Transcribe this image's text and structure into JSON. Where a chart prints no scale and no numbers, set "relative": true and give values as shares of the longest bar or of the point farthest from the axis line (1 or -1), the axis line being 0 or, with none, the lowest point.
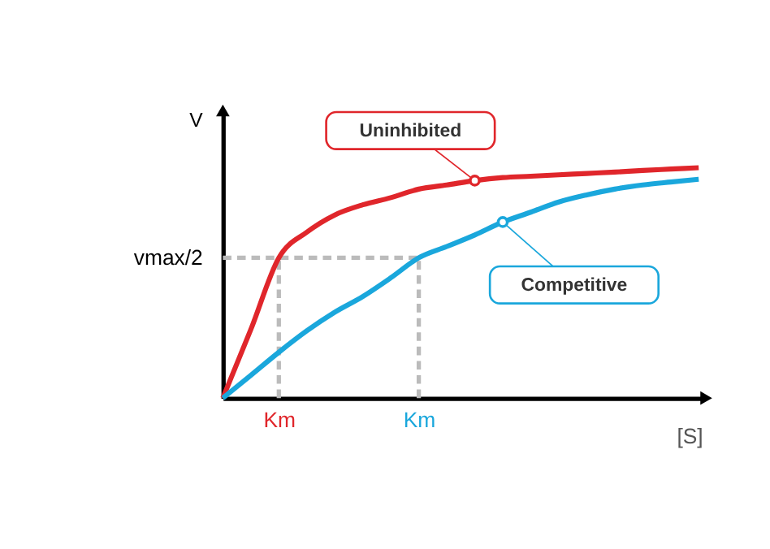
{
  "chart_data": {
    "type": "line",
    "relative": true,
    "xlabel": "[S]",
    "ylabel": "V",
    "categories": [
      null,
      null,
      "Km",
      null,
      null,
      null,
      null,
      "Km",
      null,
      null,
      null,
      null,
      null,
      null,
      null,
      null,
      null,
      null
    ],
    "series": [
      {
        "name": "Uninhibited",
        "color": "#e0262b",
        "values": [
          0,
          0.298,
          0.609,
          0.72,
          0.795,
          0.839,
          0.87,
          0.907,
          0.925,
          0.944,
          0.957,
          0.963,
          0.969,
          0.975,
          0.981,
          0.988,
          0.994,
          1.0
        ]
      },
      {
        "name": "Competitive",
        "color": "#1aa7dc",
        "values": [
          0,
          0.099,
          0.199,
          0.292,
          0.373,
          0.441,
          0.522,
          0.609,
          0.658,
          0.708,
          0.764,
          0.807,
          0.851,
          0.882,
          0.907,
          0.925,
          0.938,
          0.95
        ]
      }
    ],
    "ref_lines": [
      {
        "axis": "y",
        "value": 0.609,
        "label": "vmax/2",
        "color": "#bbbbbb",
        "line_style": "dashed"
      }
    ]
  }
}
